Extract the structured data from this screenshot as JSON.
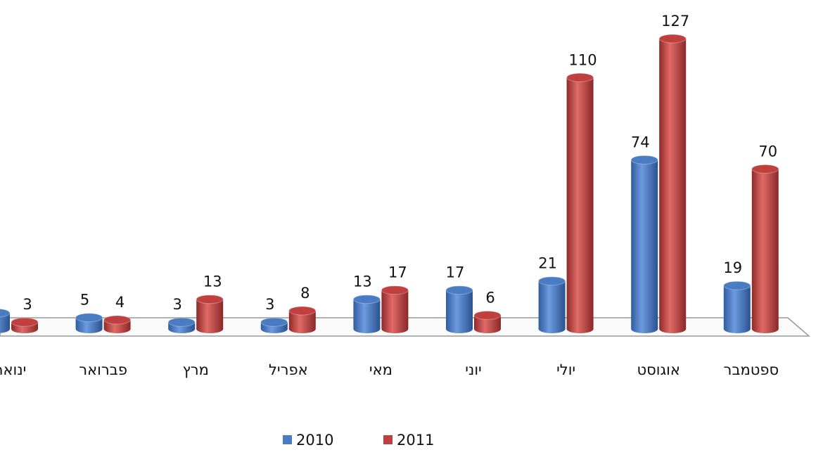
{
  "chart_data": {
    "type": "bar",
    "categories": [
      "ינואר",
      "פברואר",
      "מרץ",
      "אפריל",
      "מאי",
      "יוני",
      "יולי",
      "אוגוסט",
      "ספטמבר"
    ],
    "series": [
      {
        "name": "2010",
        "color": "#4a7cc4",
        "values": [
          7,
          5,
          3,
          3,
          13,
          17,
          21,
          74,
          19
        ]
      },
      {
        "name": "2011",
        "color": "#c0403f",
        "values": [
          3,
          4,
          13,
          8,
          17,
          6,
          110,
          127,
          70
        ]
      }
    ]
  }
}
